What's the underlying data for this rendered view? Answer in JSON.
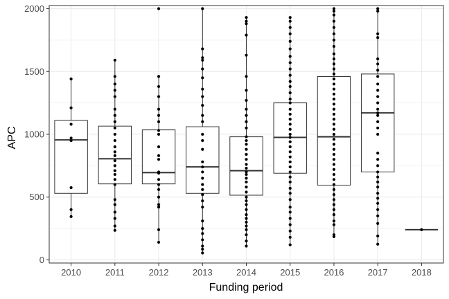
{
  "chart_data": {
    "type": "boxplot",
    "title": "",
    "xlabel": "Funding period",
    "ylabel": "APC",
    "categories": [
      "2010",
      "2011",
      "2012",
      "2013",
      "2014",
      "2015",
      "2016",
      "2017",
      "2018"
    ],
    "ylim": [
      -25,
      2025
    ],
    "yticks": [
      0,
      500,
      1000,
      1500,
      2000
    ],
    "grid": true,
    "legend": "none",
    "colors": {
      "points": "#000000",
      "box_stroke": "#333333",
      "grid": "#ebebeb",
      "panel_border": "#333333",
      "background": "#ffffff"
    },
    "boxes": [
      {
        "category": "2010",
        "min": 345,
        "q1": 530,
        "median": 955,
        "q3": 1110,
        "max": 1440
      },
      {
        "category": "2011",
        "min": 235,
        "q1": 605,
        "median": 805,
        "q3": 1065,
        "max": 1590
      },
      {
        "category": "2012",
        "min": 140,
        "q1": 605,
        "median": 695,
        "q3": 1035,
        "max": 1460
      },
      {
        "category": "2013",
        "min": 55,
        "q1": 530,
        "median": 740,
        "q3": 1060,
        "max": 2000
      },
      {
        "category": "2014",
        "min": 110,
        "q1": 515,
        "median": 710,
        "q3": 980,
        "max": 1930
      },
      {
        "category": "2015",
        "min": 120,
        "q1": 690,
        "median": 975,
        "q3": 1250,
        "max": 1930
      },
      {
        "category": "2016",
        "min": 185,
        "q1": 595,
        "median": 980,
        "q3": 1460,
        "max": 2000
      },
      {
        "category": "2017",
        "min": 125,
        "q1": 700,
        "median": 1170,
        "q3": 1480,
        "max": 2000
      },
      {
        "category": "2018",
        "min": 240,
        "q1": 240,
        "median": 240,
        "q3": 240,
        "max": 240
      }
    ],
    "points": [
      {
        "category": "2010",
        "values": [
          345,
          400,
          575,
          950,
          970,
          1080,
          1210,
          1440
        ]
      },
      {
        "category": "2011",
        "values": [
          235,
          270,
          330,
          380,
          440,
          480,
          600,
          640,
          680,
          710,
          750,
          790,
          830,
          860,
          900,
          950,
          1000,
          1050,
          1100,
          1150,
          1200,
          1300,
          1350,
          1400,
          1460,
          1590
        ]
      },
      {
        "category": "2012",
        "values": [
          140,
          240,
          420,
          440,
          500,
          560,
          600,
          640,
          690,
          700,
          800,
          830,
          900,
          1000,
          1030,
          1100,
          1150,
          1200,
          1300,
          1380,
          1460,
          2000
        ]
      },
      {
        "category": "2013",
        "values": [
          55,
          85,
          110,
          160,
          210,
          250,
          310,
          420,
          470,
          520,
          560,
          600,
          650,
          700,
          740,
          780,
          880,
          950,
          1000,
          1100,
          1150,
          1230,
          1300,
          1360,
          1450,
          1520,
          1590,
          1610,
          1680,
          2000
        ]
      },
      {
        "category": "2014",
        "values": [
          110,
          150,
          200,
          240,
          270,
          300,
          330,
          360,
          400,
          440,
          470,
          500,
          540,
          580,
          620,
          650,
          680,
          700,
          730,
          760,
          800,
          840,
          880,
          920,
          950,
          980,
          1050,
          1100,
          1150,
          1200,
          1270,
          1350,
          1460,
          1630,
          1790,
          1880,
          1900,
          1930
        ]
      },
      {
        "category": "2015",
        "values": [
          120,
          180,
          230,
          280,
          330,
          380,
          420,
          480,
          530,
          570,
          620,
          660,
          700,
          740,
          780,
          820,
          860,
          900,
          940,
          975,
          1000,
          1040,
          1080,
          1120,
          1160,
          1200,
          1250,
          1280,
          1330,
          1380,
          1420,
          1470,
          1520,
          1570,
          1620,
          1680,
          1740,
          1800,
          1850,
          1900,
          1930
        ]
      },
      {
        "category": "2016",
        "values": [
          185,
          200,
          280,
          310,
          360,
          400,
          440,
          480,
          520,
          560,
          600,
          640,
          680,
          720,
          760,
          800,
          840,
          880,
          920,
          960,
          1000,
          1040,
          1080,
          1120,
          1160,
          1200,
          1240,
          1280,
          1320,
          1360,
          1400,
          1440,
          1480,
          1520,
          1560,
          1600,
          1640,
          1700,
          1750,
          1800,
          1850,
          1900,
          1950,
          1980,
          2000
        ]
      },
      {
        "category": "2017",
        "values": [
          125,
          190,
          290,
          350,
          400,
          450,
          490,
          530,
          580,
          620,
          660,
          700,
          750,
          800,
          850,
          1000,
          1050,
          1100,
          1150,
          1170,
          1200,
          1250,
          1300,
          1350,
          1400,
          1460,
          1510,
          1560,
          1600,
          1770,
          1800,
          1980,
          2000
        ]
      },
      {
        "category": "2018",
        "values": [
          240
        ]
      }
    ]
  }
}
